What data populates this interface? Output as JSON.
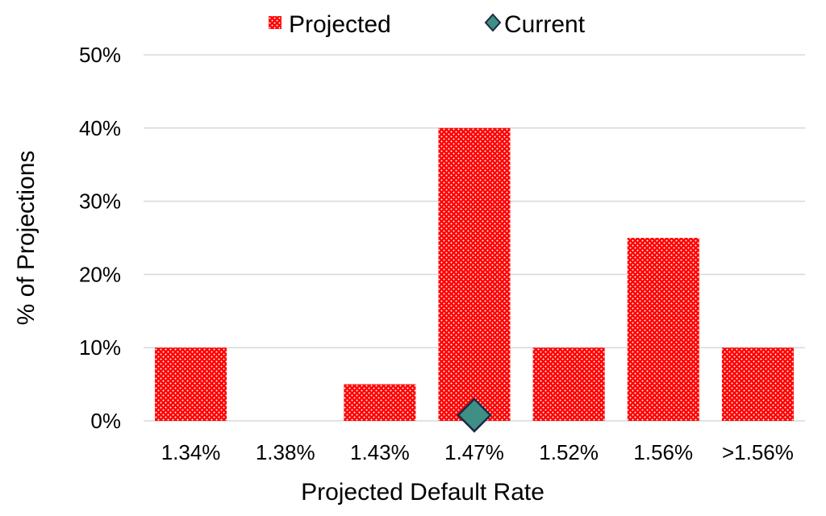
{
  "chart_data": {
    "type": "bar",
    "categories": [
      "1.34%",
      "1.38%",
      "1.43%",
      "1.47%",
      "1.52%",
      "1.56%",
      ">1.56%"
    ],
    "series": [
      {
        "name": "Projected",
        "type": "bar",
        "values": [
          10,
          0,
          5,
          40,
          10,
          25,
          10
        ],
        "color": "#ff0000",
        "pattern": "white dots"
      },
      {
        "name": "Current",
        "type": "marker",
        "marker": "diamond",
        "category": "1.47%",
        "value": 1,
        "color": "#3f8f85"
      }
    ],
    "xlabel": "Projected Default Rate",
    "ylabel": "% of Projections",
    "ylim": [
      0,
      50
    ],
    "yticks": [
      0,
      10,
      20,
      30,
      40,
      50
    ],
    "ytick_labels": [
      "0%",
      "10%",
      "20%",
      "30%",
      "40%",
      "50%"
    ],
    "grid": "horizontal",
    "legend_position": "top-center"
  }
}
